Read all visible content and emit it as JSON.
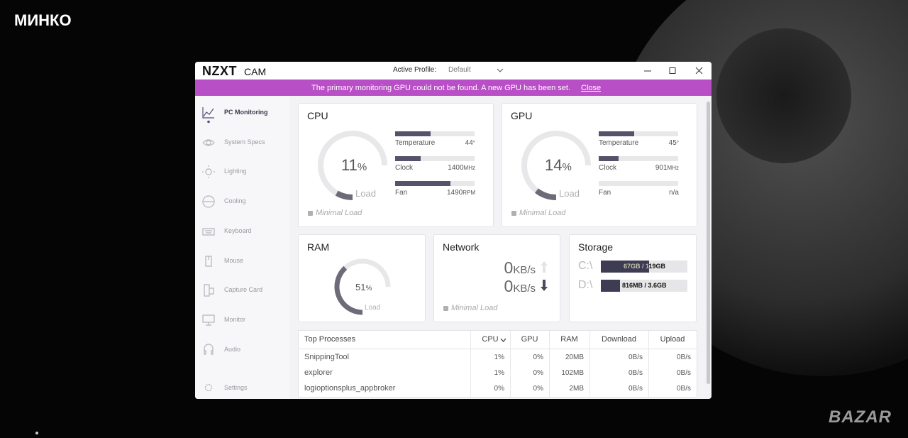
{
  "overlay": {
    "caption": "МИНКО",
    "watermark": "BAZAR"
  },
  "titlebar": {
    "logo": "NZXT",
    "product": "CAM",
    "profile_label": "Active Profile:",
    "profile": "Default"
  },
  "banner": {
    "message": "The primary monitoring GPU could not be found. A new GPU has been set.",
    "action": "Close"
  },
  "sidebar": {
    "items": [
      "PC Monitoring",
      "System Specs",
      "Lighting",
      "Cooling",
      "Keyboard",
      "Mouse",
      "Capture Card",
      "Monitor",
      "Audio"
    ],
    "active": 0,
    "settings": "Settings"
  },
  "cpu": {
    "title": "CPU",
    "load": 11,
    "load_unit": "%",
    "load_caption": "Load",
    "status": "Minimal Load",
    "stats": [
      {
        "label": "Temperature",
        "value": "44",
        "unit": "°",
        "level": 45
      },
      {
        "label": "Clock",
        "value": "1400",
        "unit": "MHz",
        "level": 32
      },
      {
        "label": "Fan",
        "value": "1490",
        "unit": "RPM",
        "level": 70
      }
    ]
  },
  "gpu": {
    "title": "GPU",
    "load": 14,
    "load_unit": "%",
    "load_caption": "Load",
    "status": "Minimal Load",
    "stats": [
      {
        "label": "Temperature",
        "value": "45",
        "unit": "°",
        "level": 45
      },
      {
        "label": "Clock",
        "value": "901",
        "unit": "MHz",
        "level": 25
      },
      {
        "label": "Fan",
        "value": "n/a",
        "level": 0
      }
    ]
  },
  "ram": {
    "title": "RAM",
    "load": 51,
    "load_unit": "%",
    "load_caption": "Load"
  },
  "network": {
    "title": "Network",
    "upload": "0",
    "download": "0",
    "unit": "KB/s",
    "status": "Minimal Load"
  },
  "storage": {
    "title": "Storage",
    "drives": [
      {
        "name": "C:\\",
        "usage": "67GB / 119GB",
        "level": 56
      },
      {
        "name": "D:\\",
        "usage": "816MB / 3.6GB",
        "level": 22
      }
    ]
  },
  "processes": {
    "columns": [
      "Top Processes",
      "CPU",
      "GPU",
      "RAM",
      "Download",
      "Upload"
    ],
    "rows": [
      [
        "SnippingTool",
        "1%",
        "0%",
        "20MB",
        "0B/s",
        "0B/s"
      ],
      [
        "explorer",
        "1%",
        "0%",
        "102MB",
        "0B/s",
        "0B/s"
      ],
      [
        "logioptionsplus_appbroker",
        "0%",
        "0%",
        "2MB",
        "0B/s",
        "0B/s"
      ]
    ]
  }
}
